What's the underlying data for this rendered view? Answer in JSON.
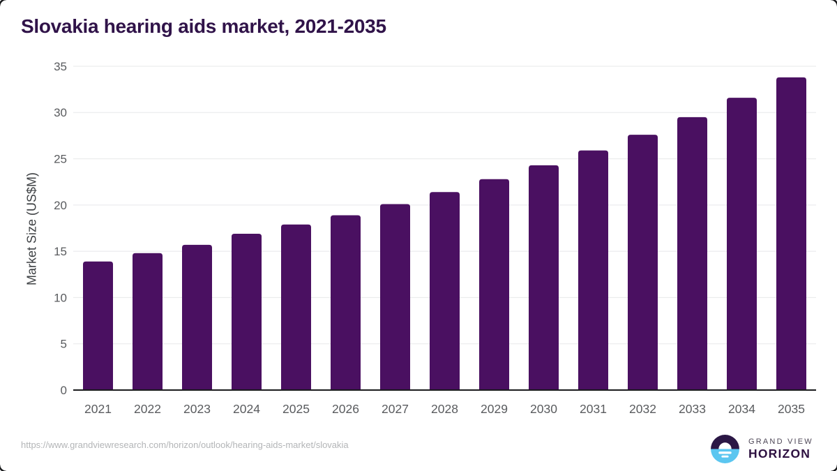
{
  "header": {
    "title": "Slovakia hearing aids market, 2021-2035"
  },
  "chart_data": {
    "type": "bar",
    "title": "Slovakia hearing aids market, 2021-2035",
    "categories": [
      "2021",
      "2022",
      "2023",
      "2024",
      "2025",
      "2026",
      "2027",
      "2028",
      "2029",
      "2030",
      "2031",
      "2032",
      "2033",
      "2034",
      "2035"
    ],
    "values": [
      13.9,
      14.8,
      15.7,
      16.9,
      17.9,
      18.9,
      20.1,
      21.4,
      22.8,
      24.3,
      25.9,
      27.6,
      29.5,
      31.6,
      33.8
    ],
    "xlabel": "",
    "ylabel": "Market Size (US$M)",
    "ylim": [
      0,
      35
    ],
    "yticks": [
      0,
      5,
      10,
      15,
      20,
      25,
      30,
      35
    ],
    "grid": true,
    "legend": "none",
    "colors": {
      "bar": "#4a1061",
      "grid": "#e7e8ea",
      "axis": "#1a1b1d",
      "tick": "#595b5e"
    }
  },
  "footer": {
    "url": "https://www.grandviewresearch.com/horizon/outlook/hearing-aids-market/slovakia",
    "logo": {
      "line1": "GRAND VIEW",
      "line2": "HORIZON"
    }
  }
}
